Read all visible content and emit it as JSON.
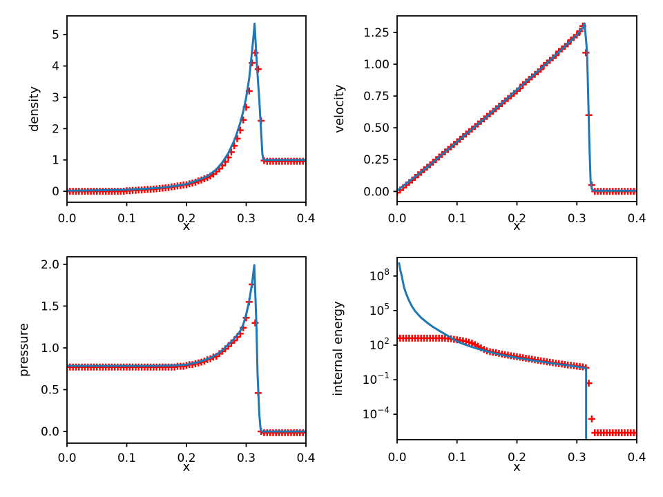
{
  "figure": {
    "background": "#ffffff",
    "line_color": "#1f77b4",
    "marker_color": "#ff0000",
    "marker_style": "+",
    "line_style": "solid",
    "text_color": "#000000"
  },
  "chart_data": {
    "type": "line",
    "layout": "2x2-grid",
    "grid": false,
    "legend": "none",
    "xlabel": "x",
    "xlim": [
      0,
      0.4
    ],
    "xticks": [
      0,
      0.1,
      0.2,
      0.3,
      0.4
    ],
    "xtick_labels": [
      "0.0",
      "0.1",
      "0.2",
      "0.3",
      "0.4"
    ],
    "marker_x": [
      0,
      0.005,
      0.01,
      0.015,
      0.02,
      0.025,
      0.03,
      0.035,
      0.04,
      0.045,
      0.05,
      0.055,
      0.06,
      0.065,
      0.07,
      0.075,
      0.08,
      0.085,
      0.09,
      0.095,
      0.1,
      0.105,
      0.11,
      0.115,
      0.12,
      0.125,
      0.13,
      0.135,
      0.14,
      0.145,
      0.15,
      0.155,
      0.16,
      0.165,
      0.17,
      0.175,
      0.18,
      0.185,
      0.19,
      0.195,
      0.2,
      0.205,
      0.21,
      0.215,
      0.22,
      0.225,
      0.23,
      0.235,
      0.24,
      0.245,
      0.25,
      0.255,
      0.26,
      0.265,
      0.27,
      0.275,
      0.28,
      0.285,
      0.29,
      0.295,
      0.3,
      0.305,
      0.31,
      0.315,
      0.32,
      0.325,
      0.33,
      0.335,
      0.34,
      0.345,
      0.35,
      0.355,
      0.36,
      0.365,
      0.37,
      0.375,
      0.38,
      0.385,
      0.39,
      0.395,
      0.4
    ],
    "subplots": [
      {
        "name": "density",
        "ylabel": "density",
        "yscale": "linear",
        "ylim": [
          -0.35,
          5.6
        ],
        "yticks": [
          0,
          1,
          2,
          3,
          4,
          5
        ],
        "ytick_labels": [
          "0",
          "1",
          "2",
          "3",
          "4",
          "5"
        ],
        "line_x": [
          0,
          0.05,
          0.1,
          0.13,
          0.16,
          0.18,
          0.2,
          0.22,
          0.235,
          0.25,
          0.26,
          0.27,
          0.28,
          0.285,
          0.29,
          0.295,
          0.3,
          0.305,
          0.31,
          0.3125,
          0.314,
          0.318,
          0.322,
          0.325,
          0.327,
          0.3285,
          0.33,
          0.4
        ],
        "line_y": [
          0.02,
          0.03,
          0.05,
          0.08,
          0.12,
          0.17,
          0.23,
          0.36,
          0.48,
          0.7,
          0.92,
          1.22,
          1.62,
          1.88,
          2.18,
          2.55,
          3.0,
          3.6,
          4.5,
          5.0,
          5.35,
          4.0,
          2.9,
          1.9,
          1.2,
          1.02,
          1.0,
          1.0
        ],
        "marker_y": [
          0,
          0,
          0,
          0,
          0,
          0,
          0,
          0,
          0,
          0,
          0,
          0,
          0,
          0,
          0,
          0,
          0,
          0,
          0,
          0,
          0.02,
          0.02,
          0.03,
          0.03,
          0.04,
          0.04,
          0.05,
          0.06,
          0.06,
          0.07,
          0.08,
          0.09,
          0.1,
          0.11,
          0.12,
          0.14,
          0.15,
          0.17,
          0.18,
          0.2,
          0.21,
          0.24,
          0.26,
          0.29,
          0.33,
          0.36,
          0.4,
          0.44,
          0.49,
          0.55,
          0.63,
          0.72,
          0.82,
          0.94,
          1.08,
          1.25,
          1.45,
          1.68,
          1.95,
          2.28,
          2.68,
          3.2,
          4.1,
          4.42,
          3.9,
          2.25,
          0.98,
          0.96,
          0.96,
          0.96,
          0.96,
          0.96,
          0.96,
          0.96,
          0.96,
          0.96,
          0.96,
          0.96,
          0.96,
          0.96,
          0.96
        ]
      },
      {
        "name": "velocity",
        "ylabel": "velocity",
        "yscale": "linear",
        "ylim": [
          -0.08,
          1.38
        ],
        "yticks": [
          0,
          0.25,
          0.5,
          0.75,
          1.0,
          1.25
        ],
        "ytick_labels": [
          "0.00",
          "0.25",
          "0.50",
          "0.75",
          "1.00",
          "1.25"
        ],
        "line_x": [
          0,
          0.05,
          0.1,
          0.15,
          0.2,
          0.25,
          0.28,
          0.3,
          0.305,
          0.31,
          0.313,
          0.317,
          0.319,
          0.321,
          0.323,
          0.325,
          0.328,
          0.4
        ],
        "line_y": [
          0.005,
          0.19,
          0.39,
          0.59,
          0.8,
          1.01,
          1.14,
          1.23,
          1.26,
          1.29,
          1.32,
          1.1,
          0.75,
          0.35,
          0.08,
          0.02,
          0.005,
          0.005
        ],
        "marker_y": [
          -0.01,
          0.01,
          0.03,
          0.05,
          0.07,
          0.09,
          0.11,
          0.13,
          0.15,
          0.17,
          0.19,
          0.21,
          0.23,
          0.25,
          0.27,
          0.29,
          0.31,
          0.33,
          0.35,
          0.37,
          0.39,
          0.41,
          0.43,
          0.45,
          0.47,
          0.49,
          0.51,
          0.53,
          0.55,
          0.57,
          0.59,
          0.61,
          0.63,
          0.65,
          0.67,
          0.69,
          0.71,
          0.73,
          0.75,
          0.77,
          0.79,
          0.81,
          0.84,
          0.86,
          0.88,
          0.9,
          0.92,
          0.94,
          0.96,
          0.99,
          1.01,
          1.03,
          1.05,
          1.07,
          1.1,
          1.12,
          1.14,
          1.16,
          1.19,
          1.21,
          1.23,
          1.26,
          1.3,
          1.09,
          0.6,
          0.05,
          0,
          0,
          0,
          0,
          0,
          0,
          0,
          0,
          0,
          0,
          0,
          0,
          0,
          0,
          0
        ]
      },
      {
        "name": "pressure",
        "ylabel": "pressure",
        "yscale": "linear",
        "ylim": [
          -0.14,
          2.09
        ],
        "yticks": [
          0,
          0.5,
          1.0,
          1.5,
          2.0
        ],
        "ytick_labels": [
          "0.0",
          "0.5",
          "1.0",
          "1.5",
          "2.0"
        ],
        "line_x": [
          0,
          0.15,
          0.18,
          0.2,
          0.22,
          0.24,
          0.25,
          0.26,
          0.27,
          0.28,
          0.29,
          0.295,
          0.3,
          0.305,
          0.31,
          0.3135,
          0.317,
          0.319,
          0.322,
          0.324,
          0.326,
          0.33,
          0.4
        ],
        "line_y": [
          0.785,
          0.785,
          0.79,
          0.8,
          0.83,
          0.88,
          0.92,
          0.97,
          1.04,
          1.11,
          1.2,
          1.28,
          1.4,
          1.56,
          1.78,
          1.99,
          1.3,
          0.7,
          0.2,
          0.03,
          0.0,
          0.0,
          0.0
        ],
        "marker_y": [
          0.77,
          0.77,
          0.77,
          0.77,
          0.77,
          0.77,
          0.77,
          0.77,
          0.77,
          0.77,
          0.77,
          0.77,
          0.77,
          0.77,
          0.77,
          0.77,
          0.77,
          0.77,
          0.77,
          0.77,
          0.77,
          0.77,
          0.77,
          0.77,
          0.77,
          0.77,
          0.77,
          0.77,
          0.77,
          0.77,
          0.77,
          0.77,
          0.77,
          0.77,
          0.77,
          0.77,
          0.77,
          0.78,
          0.78,
          0.78,
          0.79,
          0.8,
          0.8,
          0.81,
          0.82,
          0.83,
          0.84,
          0.86,
          0.87,
          0.89,
          0.9,
          0.93,
          0.96,
          0.99,
          1.02,
          1.06,
          1.09,
          1.13,
          1.17,
          1.24,
          1.36,
          1.55,
          1.76,
          1.3,
          0.46,
          0,
          -0.015,
          -0.015,
          -0.015,
          -0.015,
          -0.015,
          -0.015,
          -0.015,
          -0.015,
          -0.015,
          -0.015,
          -0.015,
          -0.015,
          -0.015,
          -0.015,
          -0.015
        ]
      },
      {
        "name": "internal-energy",
        "ylabel": "internal energy",
        "yscale": "log",
        "ylim": [
          6.3e-07,
          4000000000.0
        ],
        "yticks": [
          100000000.0,
          100000.0,
          100,
          0.1,
          0.0001
        ],
        "ytick_labels": [
          "10^8",
          "10^5",
          "10^2",
          "10^-1",
          "10^-4"
        ],
        "line_x": [
          0.003,
          0.005,
          0.008,
          0.01,
          0.012,
          0.015,
          0.02,
          0.025,
          0.03,
          0.04,
          0.05,
          0.06,
          0.07,
          0.08,
          0.09,
          0.1,
          0.11,
          0.12,
          0.13,
          0.14,
          0.15,
          0.16,
          0.17,
          0.18,
          0.19,
          0.2,
          0.21,
          0.22,
          0.23,
          0.24,
          0.25,
          0.26,
          0.27,
          0.28,
          0.29,
          0.3,
          0.305,
          0.31,
          0.3135,
          0.3155,
          0.3155
        ],
        "line_y": [
          1500000000.0,
          400000000.0,
          90000000.0,
          25000000.0,
          9000000.0,
          3000000.0,
          700000.0,
          220000.0,
          90000.0,
          24000.0,
          9000,
          3800,
          1800,
          900,
          430,
          210,
          130,
          85,
          57,
          40,
          29,
          21,
          16,
          12.5,
          10,
          8,
          6.5,
          5.3,
          4.4,
          3.7,
          3.1,
          2.6,
          2.2,
          1.9,
          1.6,
          1.35,
          1.25,
          1.15,
          1.05,
          1.0,
          1e-07
        ],
        "marker_y": [
          400,
          400,
          400,
          400,
          400,
          400,
          400,
          400,
          400,
          400,
          400,
          400,
          400,
          400,
          400,
          400,
          390,
          370,
          350,
          320,
          290,
          265,
          240,
          210,
          180,
          150,
          110,
          80,
          58,
          42,
          32,
          27,
          24,
          22,
          19,
          17,
          15,
          13.5,
          12,
          11,
          10,
          9,
          8,
          7.3,
          6.6,
          6,
          5.4,
          4.9,
          4.4,
          4,
          3.6,
          3.3,
          3,
          2.7,
          2.5,
          2.3,
          2.1,
          1.9,
          1.8,
          1.65,
          1.5,
          1.4,
          1.3,
          1.1,
          0.05,
          4e-05,
          2.5e-06,
          2.5e-06,
          2.5e-06,
          2.5e-06,
          2.5e-06,
          2.5e-06,
          2.5e-06,
          2.5e-06,
          2.5e-06,
          2.5e-06,
          2.5e-06,
          2.5e-06,
          2.5e-06,
          2.5e-06,
          2.5e-06
        ]
      }
    ]
  }
}
